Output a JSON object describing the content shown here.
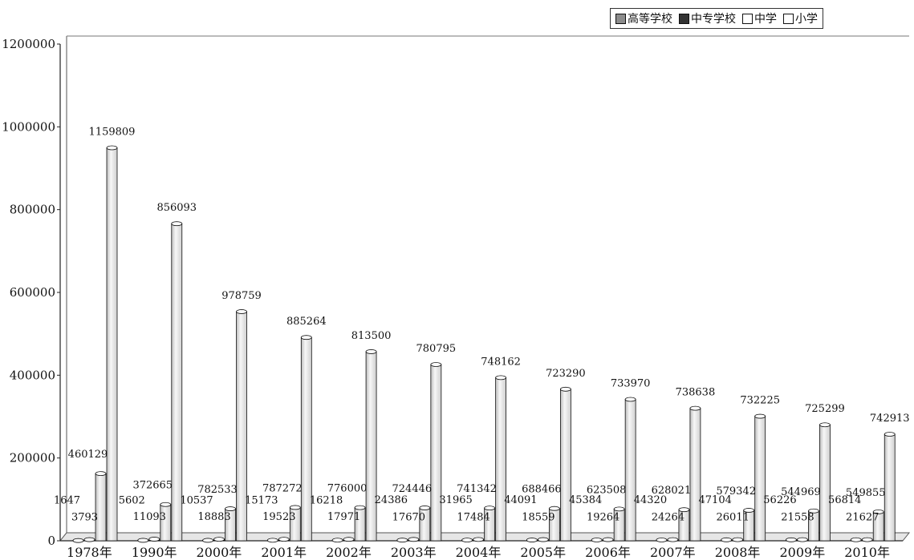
{
  "chart_data": {
    "type": "bar",
    "categories": [
      "1978年",
      "1990年",
      "2000年",
      "2001年",
      "2002年",
      "2003年",
      "2004年",
      "2005年",
      "2006年",
      "2007年",
      "2008年",
      "2009年",
      "2010年"
    ],
    "series": [
      {
        "name": "高等学校",
        "color": "#8c8c8c",
        "values": [
          598,
          1075,
          1041,
          1225,
          1396,
          1552,
          1731,
          1792,
          1867,
          1908,
          2263,
          2305,
          2358
        ],
        "data_labels": [
          "1647",
          "5602",
          "10537",
          "15173",
          "16218",
          "24386",
          "31965",
          "44091",
          "45384",
          "44320",
          "47104",
          "56226",
          "56814"
        ]
      },
      {
        "name": "中专学校",
        "color": "#3a3a3a",
        "values": [
          2760,
          3982,
          3646,
          3572,
          3474,
          3277,
          3135,
          2800,
          2751,
          2660,
          2695,
          2651,
          2651
        ],
        "data_labels": [
          "3793",
          "11093",
          "18883",
          "19523",
          "17971",
          "17670",
          "17484",
          "18559",
          "19264",
          "24264",
          "26011",
          "21558",
          "21627"
        ]
      },
      {
        "name": "中学",
        "color": "#f2f2f2",
        "values": [
          162345,
          87631,
          77268,
          80432,
          80067,
          79490,
          79058,
          77977,
          76703,
          75143,
          73637,
          72042,
          69916
        ],
        "data_labels": [
          "460129",
          "372665",
          "782533",
          "787272",
          "776000",
          "724446",
          "741342",
          "688466",
          "623508",
          "628021",
          "579342",
          "544969",
          "549855"
        ]
      },
      {
        "name": "小学",
        "color": "#f2f2f2",
        "values": [
          949323,
          766072,
          553622,
          491273,
          456903,
          425846,
          394183,
          366213,
          341639,
          320061,
          300854,
          280184,
          257410
        ],
        "data_labels": [
          "1159809",
          "856093",
          "978759",
          "885264",
          "813500",
          "780795",
          "748162",
          "723290",
          "733970",
          "738638",
          "732225",
          "725299",
          "742913"
        ]
      }
    ],
    "yticks": [
      "0",
      "200000",
      "400000",
      "600000",
      "800000",
      "1000000",
      "1200000"
    ],
    "ylim": [
      0,
      1200000
    ],
    "legend_position": "top-right",
    "grid": false
  }
}
